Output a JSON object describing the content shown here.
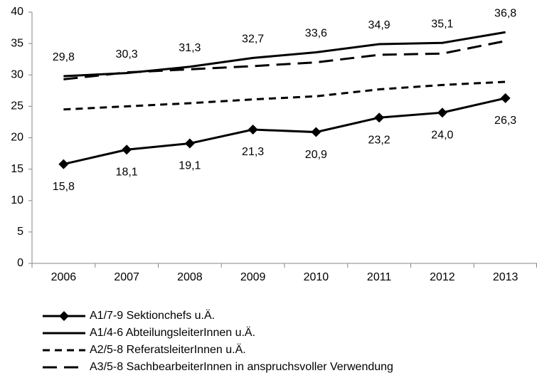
{
  "chart_data": {
    "type": "line",
    "categories": [
      "2006",
      "2007",
      "2008",
      "2009",
      "2010",
      "2011",
      "2012",
      "2013"
    ],
    "ylim": [
      0,
      40
    ],
    "yticks": [
      0,
      5,
      10,
      15,
      20,
      25,
      30,
      35,
      40
    ],
    "series": [
      {
        "name": "A1/7-9 Sektionchefs u.Ä.",
        "color": "#000000",
        "line_style": "solid",
        "marker": "diamond",
        "values": [
          15.8,
          18.1,
          19.1,
          21.3,
          20.9,
          23.2,
          24.0,
          26.3
        ],
        "value_labels": [
          "15,8",
          "18,1",
          "19,1",
          "21,3",
          "20,9",
          "23,2",
          "24,0",
          "26,3"
        ],
        "label_position": "below"
      },
      {
        "name": "A1/4-6 AbteilungsleiterInnen u.Ä.",
        "color": "#000000",
        "line_style": "solid",
        "values": [
          29.8,
          30.3,
          31.3,
          32.7,
          33.6,
          34.9,
          35.1,
          36.8
        ],
        "value_labels": [
          "29,8",
          "30,3",
          "31,3",
          "32,7",
          "33,6",
          "34,9",
          "35,1",
          "36,8"
        ],
        "label_position": "above"
      },
      {
        "name": "A2/5-8 ReferatsleiterInnen u.Ä.",
        "color": "#000000",
        "line_style": "dashed",
        "values": [
          24.5,
          25.0,
          25.5,
          26.1,
          26.6,
          27.7,
          28.4,
          28.9
        ]
      },
      {
        "name": "A3/5-8 SachbearbeiterInnen in anspruchsvoller Verwendung",
        "color": "#000000",
        "line_style": "long-dashed",
        "values": [
          29.3,
          30.4,
          30.9,
          31.4,
          32.0,
          33.2,
          33.4,
          35.4
        ]
      }
    ]
  }
}
